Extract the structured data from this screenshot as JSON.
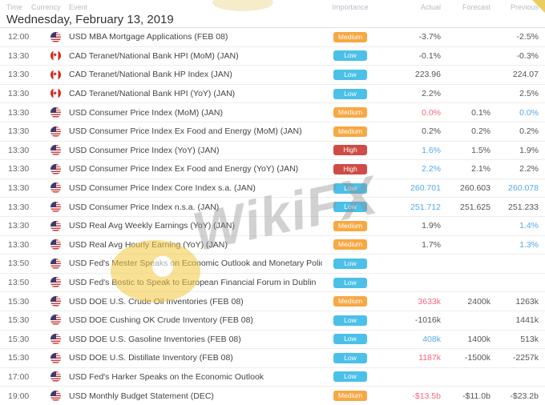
{
  "table": {
    "columns": [
      "Time",
      "Currency",
      "Event",
      "Importance",
      "Actual",
      "Forecast",
      "Previous"
    ],
    "date_header": "Wednesday, February 13, 2019",
    "rows": [
      {
        "time": "12:00",
        "currency": "USD",
        "flag": "us",
        "event": "USD MBA Mortgage Applications (FEB 08)",
        "importance": "Medium",
        "actual": {
          "text": "-3.7%",
          "color": "default"
        },
        "forecast": {
          "text": "",
          "color": "default"
        },
        "previous": {
          "text": "-2.5%",
          "color": "default"
        }
      },
      {
        "time": "13:30",
        "currency": "CAD",
        "flag": "ca",
        "event": "CAD Teranet/National Bank HPI (MoM) (JAN)",
        "importance": "Low",
        "actual": {
          "text": "-0.1%",
          "color": "default"
        },
        "forecast": {
          "text": "",
          "color": "default"
        },
        "previous": {
          "text": "-0.3%",
          "color": "default"
        }
      },
      {
        "time": "13:30",
        "currency": "CAD",
        "flag": "ca",
        "event": "CAD Teranet/National Bank HP Index (JAN)",
        "importance": "Low",
        "actual": {
          "text": "223.96",
          "color": "default"
        },
        "forecast": {
          "text": "",
          "color": "default"
        },
        "previous": {
          "text": "224.07",
          "color": "default"
        }
      },
      {
        "time": "13:30",
        "currency": "CAD",
        "flag": "ca",
        "event": "CAD Teranet/National Bank HPI (YoY) (JAN)",
        "importance": "Low",
        "actual": {
          "text": "2.2%",
          "color": "default"
        },
        "forecast": {
          "text": "",
          "color": "default"
        },
        "previous": {
          "text": "2.5%",
          "color": "default"
        }
      },
      {
        "time": "13:30",
        "currency": "USD",
        "flag": "us",
        "event": "USD Consumer Price Index (MoM) (JAN)",
        "importance": "Medium",
        "actual": {
          "text": "0.0%",
          "color": "red"
        },
        "forecast": {
          "text": "0.1%",
          "color": "default"
        },
        "previous": {
          "text": "0.0%",
          "color": "blue"
        }
      },
      {
        "time": "13:30",
        "currency": "USD",
        "flag": "us",
        "event": "USD Consumer Price Index Ex Food and Energy (MoM) (JAN)",
        "importance": "Medium",
        "actual": {
          "text": "0.2%",
          "color": "default"
        },
        "forecast": {
          "text": "0.2%",
          "color": "default"
        },
        "previous": {
          "text": "0.2%",
          "color": "default"
        }
      },
      {
        "time": "13:30",
        "currency": "USD",
        "flag": "us",
        "event": "USD Consumer Price Index (YoY) (JAN)",
        "importance": "High",
        "actual": {
          "text": "1.6%",
          "color": "blue"
        },
        "forecast": {
          "text": "1.5%",
          "color": "default"
        },
        "previous": {
          "text": "1.9%",
          "color": "default"
        }
      },
      {
        "time": "13:30",
        "currency": "USD",
        "flag": "us",
        "event": "USD Consumer Price Index Ex Food and Energy (YoY) (JAN)",
        "importance": "High",
        "actual": {
          "text": "2.2%",
          "color": "blue"
        },
        "forecast": {
          "text": "2.1%",
          "color": "default"
        },
        "previous": {
          "text": "2.2%",
          "color": "default"
        }
      },
      {
        "time": "13:30",
        "currency": "USD",
        "flag": "us",
        "event": "USD Consumer Price Index Core Index s.a. (JAN)",
        "importance": "Low",
        "actual": {
          "text": "260.701",
          "color": "blue"
        },
        "forecast": {
          "text": "260.603",
          "color": "default"
        },
        "previous": {
          "text": "260.078",
          "color": "blue"
        }
      },
      {
        "time": "13:30",
        "currency": "USD",
        "flag": "us",
        "event": "USD Consumer Price Index n.s.a. (JAN)",
        "importance": "Low",
        "actual": {
          "text": "251.712",
          "color": "blue"
        },
        "forecast": {
          "text": "251.625",
          "color": "default"
        },
        "previous": {
          "text": "251.233",
          "color": "default"
        }
      },
      {
        "time": "13:30",
        "currency": "USD",
        "flag": "us",
        "event": "USD Real Avg Weekly Earnings (YoY) (JAN)",
        "importance": "Medium",
        "actual": {
          "text": "1.9%",
          "color": "default"
        },
        "forecast": {
          "text": "",
          "color": "default"
        },
        "previous": {
          "text": "1.4%",
          "color": "blue"
        }
      },
      {
        "time": "13:30",
        "currency": "USD",
        "flag": "us",
        "event": "USD Real Avg Hourly Earning (YoY) (JAN)",
        "importance": "Medium",
        "actual": {
          "text": "1.7%",
          "color": "default"
        },
        "forecast": {
          "text": "",
          "color": "default"
        },
        "previous": {
          "text": "1.3%",
          "color": "blue"
        }
      },
      {
        "time": "13:50",
        "currency": "USD",
        "flag": "us",
        "event": "USD Fed's Mester Speaks on Economic Outlook and Monetary Policy",
        "importance": "Low",
        "actual": {
          "text": "",
          "color": "default"
        },
        "forecast": {
          "text": "",
          "color": "default"
        },
        "previous": {
          "text": "",
          "color": "default"
        }
      },
      {
        "time": "13:50",
        "currency": "USD",
        "flag": "us",
        "event": "USD Fed's Bostic to Speak to European Financial Forum in Dublin",
        "importance": "Low",
        "actual": {
          "text": "",
          "color": "default"
        },
        "forecast": {
          "text": "",
          "color": "default"
        },
        "previous": {
          "text": "",
          "color": "default"
        }
      },
      {
        "time": "15:30",
        "currency": "USD",
        "flag": "us",
        "event": "USD DOE U.S. Crude Oil Inventories (FEB 08)",
        "importance": "Medium",
        "actual": {
          "text": "3633k",
          "color": "red"
        },
        "forecast": {
          "text": "2400k",
          "color": "default"
        },
        "previous": {
          "text": "1263k",
          "color": "default"
        }
      },
      {
        "time": "15:30",
        "currency": "USD",
        "flag": "us",
        "event": "USD DOE Cushing OK Crude Inventory (FEB 08)",
        "importance": "Low",
        "actual": {
          "text": "-1016k",
          "color": "default"
        },
        "forecast": {
          "text": "",
          "color": "default"
        },
        "previous": {
          "text": "1441k",
          "color": "default"
        }
      },
      {
        "time": "15:30",
        "currency": "USD",
        "flag": "us",
        "event": "USD DOE U.S. Gasoline Inventories (FEB 08)",
        "importance": "Low",
        "actual": {
          "text": "408k",
          "color": "blue"
        },
        "forecast": {
          "text": "1400k",
          "color": "default"
        },
        "previous": {
          "text": "513k",
          "color": "default"
        }
      },
      {
        "time": "15:30",
        "currency": "USD",
        "flag": "us",
        "event": "USD DOE U.S. Distillate Inventory (FEB 08)",
        "importance": "Low",
        "actual": {
          "text": "1187k",
          "color": "red"
        },
        "forecast": {
          "text": "-1500k",
          "color": "default"
        },
        "previous": {
          "text": "-2257k",
          "color": "default"
        }
      },
      {
        "time": "17:00",
        "currency": "USD",
        "flag": "us",
        "event": "USD Fed's Harker Speaks on the Economic Outlook",
        "importance": "Low",
        "actual": {
          "text": "",
          "color": "default"
        },
        "forecast": {
          "text": "",
          "color": "default"
        },
        "previous": {
          "text": "",
          "color": "default"
        }
      },
      {
        "time": "19:00",
        "currency": "USD",
        "flag": "us",
        "event": "USD Monthly Budget Statement (DEC)",
        "importance": "Medium",
        "actual": {
          "text": "-$13.5b",
          "color": "red"
        },
        "forecast": {
          "text": "-$11.0b",
          "color": "default"
        },
        "previous": {
          "text": "-$23.2b",
          "color": "default"
        }
      }
    ]
  },
  "colors": {
    "importance": {
      "Low": "#4bc0e9",
      "Medium": "#f8a843",
      "High": "#cf4b45"
    },
    "values": {
      "default": "#555555",
      "red": "#f5687d",
      "blue": "#55a9e8"
    }
  },
  "watermark": {
    "text": "WikiFX"
  }
}
